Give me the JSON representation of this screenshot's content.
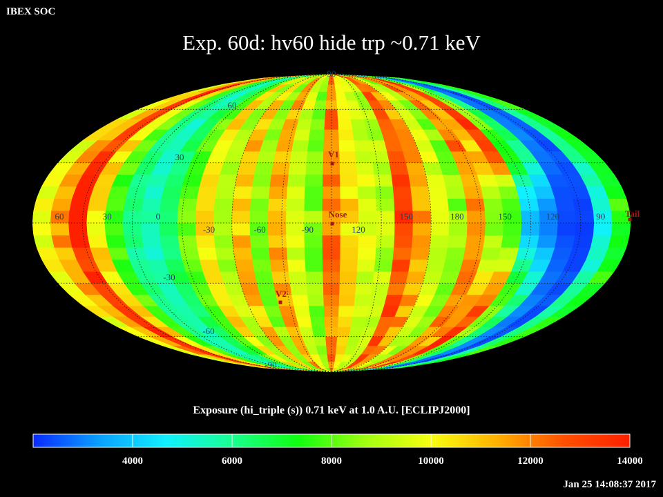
{
  "header": {
    "org": "IBEX SOC",
    "title": "Exp.   60d: hv60 hide trp ~0.71 keV",
    "timestamp": "Jan 25 14:08:37 2017"
  },
  "chart_data": {
    "type": "heatmap",
    "projection": "Mollweide (ecliptic J2000)",
    "title": "Exp.   60d: hv60 hide trp ~0.71 keV",
    "colorbar_title": "Exposure (hi_triple (s))  0.71 keV at 1.0 A.U. [ECLIPJ2000]",
    "colorbar": {
      "range": [
        2000,
        14000
      ],
      "ticks": [
        4000,
        6000,
        8000,
        10000,
        12000,
        14000
      ],
      "colors": [
        "#0a2aff",
        "#0aa0ff",
        "#10f0ff",
        "#18ff90",
        "#10ff10",
        "#a0ff10",
        "#f8ff10",
        "#ffb000",
        "#ff5000",
        "#ff2000"
      ]
    },
    "longitude_labels": [
      "60",
      "30",
      "0",
      "-30",
      "-60",
      "-90",
      "120",
      "150",
      "180",
      "150",
      "120",
      "90"
    ],
    "latitude_labels": [
      "90",
      "60",
      "30",
      "-30",
      "-60",
      "-90"
    ],
    "markers": [
      {
        "name": "V1",
        "color": "#a01818"
      },
      {
        "name": "Nose",
        "color": "#a01818"
      },
      {
        "name": "V2",
        "color": "#a01818"
      },
      {
        "name": "Tail",
        "color": "#a01818"
      }
    ],
    "grid": "dotted",
    "exposure_bands_east_to_west": [
      10000,
      11500,
      13500,
      10500,
      8000,
      6000,
      5500,
      6500,
      8000,
      10500,
      9000,
      11000,
      8500,
      11500,
      9500,
      8500,
      12000,
      10500,
      9500,
      9000,
      13000,
      11500,
      9500,
      8500,
      12000,
      11500,
      13500,
      8500,
      6500,
      3000,
      2500,
      6000,
      7500
    ],
    "low_exposure_region": {
      "center_lon": 120,
      "center_lat": 0,
      "min_value": 2000
    }
  }
}
